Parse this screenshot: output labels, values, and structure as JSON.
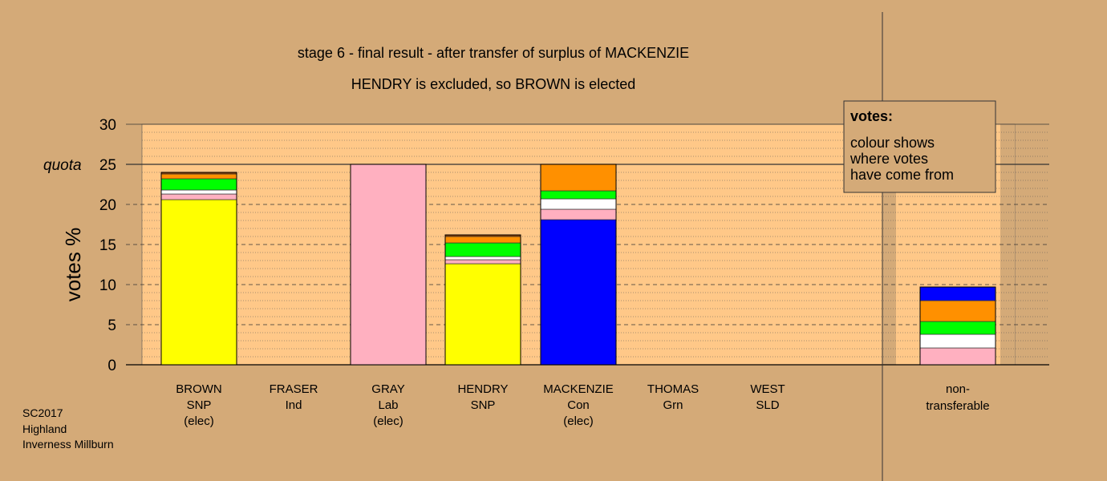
{
  "chart_data": {
    "type": "bar",
    "title": "stage 6 - final result - after transfer of surplus of MACKENZIE",
    "subtitle": "HENDRY is excluded, so BROWN is elected",
    "ylabel": "votes %",
    "ylim": [
      0,
      30
    ],
    "yticks": [
      0,
      5,
      10,
      15,
      20,
      25,
      30
    ],
    "quota": {
      "label": "quota",
      "value": 25
    },
    "grid": true,
    "colors": {
      "background": "#d4aa78",
      "plot_area": "#ffc888",
      "SNP": "#ffff00",
      "Lab": "#ffb0c0",
      "Ind": "#ffffff",
      "Grn": "#00ff00",
      "SLD": "#ff9000",
      "Con": "#0000ff",
      "Other": "#904000"
    },
    "candidates": [
      {
        "name": "BROWN",
        "party": "SNP",
        "status": "(elec)",
        "segments": [
          {
            "source": "SNP",
            "color": "#ffff00",
            "value": 20.6
          },
          {
            "source": "Lab",
            "color": "#ffb0c0",
            "value": 0.7
          },
          {
            "source": "Ind",
            "color": "#ffffff",
            "value": 0.5
          },
          {
            "source": "Grn",
            "color": "#00ff00",
            "value": 1.4
          },
          {
            "source": "SLD",
            "color": "#ff9000",
            "value": 0.6
          },
          {
            "source": "Other",
            "color": "#904000",
            "value": 0.2
          }
        ]
      },
      {
        "name": "FRASER",
        "party": "Ind",
        "status": "",
        "segments": []
      },
      {
        "name": "GRAY",
        "party": "Lab",
        "status": "(elec)",
        "segments": [
          {
            "source": "Lab",
            "color": "#ffb0c0",
            "value": 25.0
          }
        ]
      },
      {
        "name": "HENDRY",
        "party": "SNP",
        "status": "",
        "segments": [
          {
            "source": "SNP",
            "color": "#ffff00",
            "value": 12.6
          },
          {
            "source": "Lab",
            "color": "#ffb0c0",
            "value": 0.5
          },
          {
            "source": "Ind",
            "color": "#ffffff",
            "value": 0.4
          },
          {
            "source": "Grn",
            "color": "#00ff00",
            "value": 1.7
          },
          {
            "source": "SLD",
            "color": "#ff9000",
            "value": 0.8
          },
          {
            "source": "Other",
            "color": "#904000",
            "value": 0.2
          }
        ]
      },
      {
        "name": "MACKENZIE",
        "party": "Con",
        "status": "(elec)",
        "segments": [
          {
            "source": "Con",
            "color": "#0000ff",
            "value": 18.1
          },
          {
            "source": "Lab",
            "color": "#ffb0c0",
            "value": 1.3
          },
          {
            "source": "Ind",
            "color": "#ffffff",
            "value": 1.3
          },
          {
            "source": "Grn",
            "color": "#00ff00",
            "value": 1.0
          },
          {
            "source": "SLD",
            "color": "#ff9000",
            "value": 3.3
          }
        ]
      },
      {
        "name": "THOMAS",
        "party": "Grn",
        "status": "",
        "segments": []
      },
      {
        "name": "WEST",
        "party": "SLD",
        "status": "",
        "segments": []
      }
    ],
    "nontransferable": {
      "label1": "non-",
      "label2": "transferable",
      "segments": [
        {
          "source": "Lab",
          "color": "#ffb0c0",
          "value": 2.1
        },
        {
          "source": "Ind",
          "color": "#ffffff",
          "value": 1.7
        },
        {
          "source": "Grn",
          "color": "#00ff00",
          "value": 1.6
        },
        {
          "source": "SLD",
          "color": "#ff9000",
          "value": 2.6
        },
        {
          "source": "Con",
          "color": "#0000ff",
          "value": 1.7
        }
      ]
    }
  },
  "legend": {
    "title": "votes:",
    "lines": [
      "colour shows",
      "where votes",
      "have come from"
    ]
  },
  "footer": {
    "lines": [
      "SC2017",
      "Highland",
      "Inverness Millburn"
    ]
  }
}
